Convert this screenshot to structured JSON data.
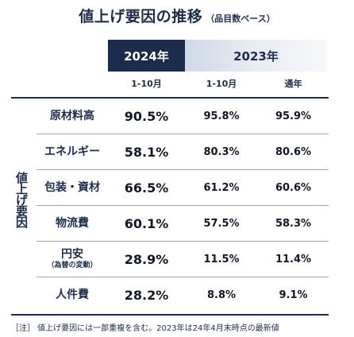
{
  "title": {
    "main": "値上げ要因の推移",
    "sub": "（品目数ベース）"
  },
  "headers": {
    "col_2024": "2024年",
    "col_2023": "2023年",
    "sub_2024": "1-10月",
    "sub_2023a": "1-10月",
    "sub_2023b": "通年"
  },
  "side_label": "値上げ要因",
  "rows": [
    {
      "name": "原材料高",
      "note": "",
      "v2024": "90.5%",
      "v2023_10": "95.8%",
      "v2023_full": "95.9%"
    },
    {
      "name": "エネルギー",
      "note": "",
      "v2024": "58.1%",
      "v2023_10": "80.3%",
      "v2023_full": "80.6%"
    },
    {
      "name": "包装・資材",
      "note": "",
      "v2024": "66.5%",
      "v2023_10": "61.2%",
      "v2023_full": "60.6%"
    },
    {
      "name": "物流費",
      "note": "",
      "v2024": "60.1%",
      "v2023_10": "57.5%",
      "v2023_full": "58.3%"
    },
    {
      "name": "円安",
      "note": "（為替の変動）",
      "v2024": "28.9%",
      "v2023_10": "11.5%",
      "v2023_full": "11.4%"
    },
    {
      "name": "人件費",
      "note": "",
      "v2024": "28.2%",
      "v2023_10": "8.8%",
      "v2023_full": "9.1%"
    }
  ],
  "footnote": "［注］ 値上げ要因には一部重複を含む。2023年は24年4月末時点の最新値",
  "colors": {
    "navy": "#1a2b4c",
    "light_header": "#dde4ee"
  }
}
